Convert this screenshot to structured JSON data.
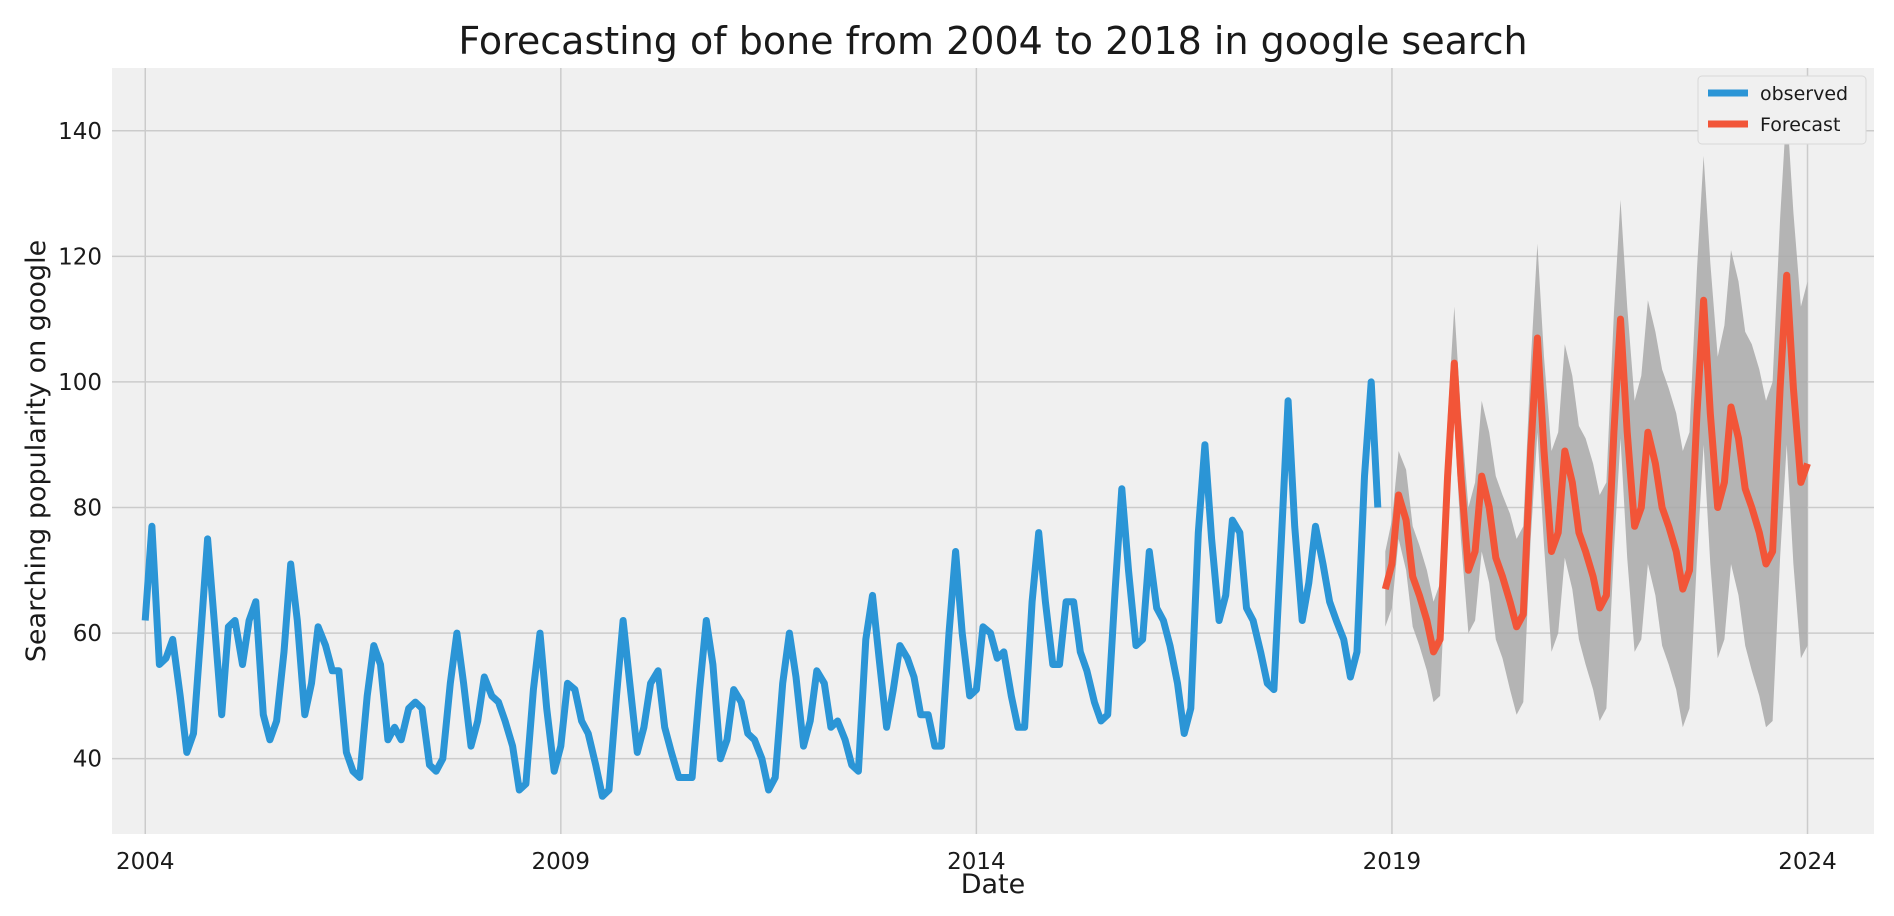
{
  "chart_data": {
    "type": "line",
    "title": "Forecasting of bone from 2004 to 2018 in google search",
    "xlabel": "Date",
    "ylabel": "Searching popularity on google",
    "xlim": [
      2003.6,
      2024.8
    ],
    "ylim": [
      28,
      150
    ],
    "x_ticks": [
      {
        "label": "2004",
        "value": 2004
      },
      {
        "label": "2009",
        "value": 2009
      },
      {
        "label": "2014",
        "value": 2014
      },
      {
        "label": "2019",
        "value": 2019
      },
      {
        "label": "2024",
        "value": 2024
      }
    ],
    "y_ticks": [
      40,
      60,
      80,
      100,
      120,
      140
    ],
    "grid": true,
    "legend_position": "top-right",
    "colors": {
      "observed": "#2b95d6",
      "forecast": "#f25538",
      "confidence": "#a9a9a9",
      "plot_bg": "#f0f0f0",
      "grid": "#cbcbcb"
    },
    "series": [
      {
        "name": "observed",
        "color": "#2b95d6",
        "points": [
          [
            2004.0,
            62
          ],
          [
            2004.08,
            77
          ],
          [
            2004.17,
            55
          ],
          [
            2004.25,
            56
          ],
          [
            2004.33,
            59
          ],
          [
            2004.42,
            50
          ],
          [
            2004.5,
            41
          ],
          [
            2004.58,
            44
          ],
          [
            2004.67,
            60
          ],
          [
            2004.75,
            75
          ],
          [
            2004.83,
            62
          ],
          [
            2004.92,
            47
          ],
          [
            2005.0,
            61
          ],
          [
            2005.08,
            62
          ],
          [
            2005.17,
            55
          ],
          [
            2005.25,
            62
          ],
          [
            2005.33,
            65
          ],
          [
            2005.42,
            47
          ],
          [
            2005.5,
            43
          ],
          [
            2005.58,
            46
          ],
          [
            2005.67,
            57
          ],
          [
            2005.75,
            71
          ],
          [
            2005.83,
            62
          ],
          [
            2005.92,
            47
          ],
          [
            2006.0,
            52
          ],
          [
            2006.08,
            61
          ],
          [
            2006.17,
            58
          ],
          [
            2006.25,
            54
          ],
          [
            2006.33,
            54
          ],
          [
            2006.42,
            41
          ],
          [
            2006.5,
            38
          ],
          [
            2006.58,
            37
          ],
          [
            2006.67,
            50
          ],
          [
            2006.75,
            58
          ],
          [
            2006.83,
            55
          ],
          [
            2006.92,
            43
          ],
          [
            2007.0,
            45
          ],
          [
            2007.08,
            43
          ],
          [
            2007.17,
            48
          ],
          [
            2007.25,
            49
          ],
          [
            2007.33,
            48
          ],
          [
            2007.42,
            39
          ],
          [
            2007.5,
            38
          ],
          [
            2007.58,
            40
          ],
          [
            2007.67,
            52
          ],
          [
            2007.75,
            60
          ],
          [
            2007.83,
            52
          ],
          [
            2007.92,
            42
          ],
          [
            2008.0,
            46
          ],
          [
            2008.08,
            53
          ],
          [
            2008.17,
            50
          ],
          [
            2008.25,
            49
          ],
          [
            2008.33,
            46
          ],
          [
            2008.42,
            42
          ],
          [
            2008.5,
            35
          ],
          [
            2008.58,
            36
          ],
          [
            2008.67,
            51
          ],
          [
            2008.75,
            60
          ],
          [
            2008.83,
            48
          ],
          [
            2008.92,
            38
          ],
          [
            2009.0,
            42
          ],
          [
            2009.08,
            52
          ],
          [
            2009.17,
            51
          ],
          [
            2009.25,
            46
          ],
          [
            2009.33,
            44
          ],
          [
            2009.42,
            39
          ],
          [
            2009.5,
            34
          ],
          [
            2009.58,
            35
          ],
          [
            2009.67,
            50
          ],
          [
            2009.75,
            62
          ],
          [
            2009.83,
            52
          ],
          [
            2009.92,
            41
          ],
          [
            2010.0,
            45
          ],
          [
            2010.08,
            52
          ],
          [
            2010.17,
            54
          ],
          [
            2010.25,
            45
          ],
          [
            2010.33,
            41
          ],
          [
            2010.42,
            37
          ],
          [
            2010.5,
            37
          ],
          [
            2010.58,
            37
          ],
          [
            2010.67,
            51
          ],
          [
            2010.75,
            62
          ],
          [
            2010.83,
            55
          ],
          [
            2010.92,
            40
          ],
          [
            2011.0,
            43
          ],
          [
            2011.08,
            51
          ],
          [
            2011.17,
            49
          ],
          [
            2011.25,
            44
          ],
          [
            2011.33,
            43
          ],
          [
            2011.42,
            40
          ],
          [
            2011.5,
            35
          ],
          [
            2011.58,
            37
          ],
          [
            2011.67,
            52
          ],
          [
            2011.75,
            60
          ],
          [
            2011.83,
            53
          ],
          [
            2011.92,
            42
          ],
          [
            2012.0,
            46
          ],
          [
            2012.08,
            54
          ],
          [
            2012.17,
            52
          ],
          [
            2012.25,
            45
          ],
          [
            2012.33,
            46
          ],
          [
            2012.42,
            43
          ],
          [
            2012.5,
            39
          ],
          [
            2012.58,
            38
          ],
          [
            2012.67,
            59
          ],
          [
            2012.75,
            66
          ],
          [
            2012.83,
            56
          ],
          [
            2012.92,
            45
          ],
          [
            2013.0,
            51
          ],
          [
            2013.08,
            58
          ],
          [
            2013.17,
            56
          ],
          [
            2013.25,
            53
          ],
          [
            2013.33,
            47
          ],
          [
            2013.42,
            47
          ],
          [
            2013.5,
            42
          ],
          [
            2013.58,
            42
          ],
          [
            2013.67,
            60
          ],
          [
            2013.75,
            73
          ],
          [
            2013.83,
            60
          ],
          [
            2013.92,
            50
          ],
          [
            2014.0,
            51
          ],
          [
            2014.08,
            61
          ],
          [
            2014.17,
            60
          ],
          [
            2014.25,
            56
          ],
          [
            2014.33,
            57
          ],
          [
            2014.42,
            50
          ],
          [
            2014.5,
            45
          ],
          [
            2014.58,
            45
          ],
          [
            2014.67,
            65
          ],
          [
            2014.75,
            76
          ],
          [
            2014.83,
            65
          ],
          [
            2014.92,
            55
          ],
          [
            2015.0,
            55
          ],
          [
            2015.08,
            65
          ],
          [
            2015.17,
            65
          ],
          [
            2015.25,
            57
          ],
          [
            2015.33,
            54
          ],
          [
            2015.42,
            49
          ],
          [
            2015.5,
            46
          ],
          [
            2015.58,
            47
          ],
          [
            2015.67,
            67
          ],
          [
            2015.75,
            83
          ],
          [
            2015.83,
            70
          ],
          [
            2015.92,
            58
          ],
          [
            2016.0,
            59
          ],
          [
            2016.08,
            73
          ],
          [
            2016.17,
            64
          ],
          [
            2016.25,
            62
          ],
          [
            2016.33,
            58
          ],
          [
            2016.42,
            52
          ],
          [
            2016.5,
            44
          ],
          [
            2016.58,
            48
          ],
          [
            2016.67,
            76
          ],
          [
            2016.75,
            90
          ],
          [
            2016.83,
            75
          ],
          [
            2016.92,
            62
          ],
          [
            2017.0,
            66
          ],
          [
            2017.08,
            78
          ],
          [
            2017.17,
            76
          ],
          [
            2017.25,
            64
          ],
          [
            2017.33,
            62
          ],
          [
            2017.42,
            57
          ],
          [
            2017.5,
            52
          ],
          [
            2017.58,
            51
          ],
          [
            2017.67,
            75
          ],
          [
            2017.75,
            97
          ],
          [
            2017.83,
            77
          ],
          [
            2017.92,
            62
          ],
          [
            2018.0,
            68
          ],
          [
            2018.08,
            77
          ],
          [
            2018.17,
            71
          ],
          [
            2018.25,
            65
          ],
          [
            2018.33,
            62
          ],
          [
            2018.42,
            59
          ],
          [
            2018.5,
            53
          ],
          [
            2018.58,
            57
          ],
          [
            2018.67,
            85
          ],
          [
            2018.75,
            100
          ],
          [
            2018.83,
            80
          ]
        ]
      },
      {
        "name": "Forecast",
        "color": "#f25538",
        "points": [
          [
            2018.92,
            67
          ],
          [
            2019.0,
            71
          ],
          [
            2019.08,
            82
          ],
          [
            2019.17,
            78
          ],
          [
            2019.25,
            69
          ],
          [
            2019.33,
            66
          ],
          [
            2019.42,
            62
          ],
          [
            2019.5,
            57
          ],
          [
            2019.58,
            59
          ],
          [
            2019.67,
            85
          ],
          [
            2019.75,
            103
          ],
          [
            2019.83,
            85
          ],
          [
            2019.92,
            70
          ],
          [
            2020.0,
            73
          ],
          [
            2020.08,
            85
          ],
          [
            2020.17,
            80
          ],
          [
            2020.25,
            72
          ],
          [
            2020.33,
            69
          ],
          [
            2020.42,
            65
          ],
          [
            2020.5,
            61
          ],
          [
            2020.58,
            63
          ],
          [
            2020.67,
            89
          ],
          [
            2020.75,
            107
          ],
          [
            2020.83,
            89
          ],
          [
            2020.92,
            73
          ],
          [
            2021.0,
            76
          ],
          [
            2021.08,
            89
          ],
          [
            2021.17,
            84
          ],
          [
            2021.25,
            76
          ],
          [
            2021.33,
            73
          ],
          [
            2021.42,
            69
          ],
          [
            2021.5,
            64
          ],
          [
            2021.58,
            66
          ],
          [
            2021.67,
            92
          ],
          [
            2021.75,
            110
          ],
          [
            2021.83,
            92
          ],
          [
            2021.92,
            77
          ],
          [
            2022.0,
            80
          ],
          [
            2022.08,
            92
          ],
          [
            2022.17,
            87
          ],
          [
            2022.25,
            80
          ],
          [
            2022.33,
            77
          ],
          [
            2022.42,
            73
          ],
          [
            2022.5,
            67
          ],
          [
            2022.58,
            70
          ],
          [
            2022.67,
            95
          ],
          [
            2022.75,
            113
          ],
          [
            2022.83,
            95
          ],
          [
            2022.92,
            80
          ],
          [
            2023.0,
            84
          ],
          [
            2023.08,
            96
          ],
          [
            2023.17,
            91
          ],
          [
            2023.25,
            83
          ],
          [
            2023.33,
            80
          ],
          [
            2023.42,
            76
          ],
          [
            2023.5,
            71
          ],
          [
            2023.58,
            73
          ],
          [
            2023.67,
            99
          ],
          [
            2023.75,
            117
          ],
          [
            2023.83,
            99
          ],
          [
            2023.92,
            84
          ],
          [
            2024.0,
            87
          ]
        ],
        "ci_spread": [
          6,
          7,
          7,
          8,
          8,
          8,
          8,
          8,
          9,
          9,
          9,
          10,
          10,
          11,
          12,
          12,
          13,
          13,
          14,
          14,
          14,
          14,
          15,
          15,
          16,
          16,
          17,
          17,
          17,
          18,
          18,
          18,
          18,
          19,
          19,
          20,
          20,
          21,
          21,
          21,
          22,
          22,
          22,
          22,
          22,
          23,
          23,
          24,
          24,
          25,
          25,
          25,
          25,
          26,
          26,
          26,
          27,
          27,
          27,
          28,
          28,
          29
        ]
      }
    ]
  }
}
